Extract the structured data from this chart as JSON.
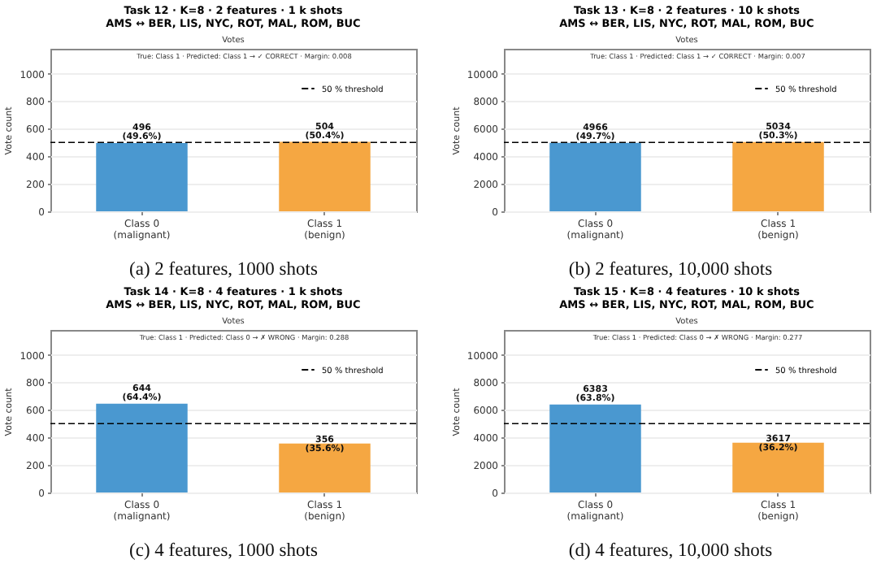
{
  "chart_data": [
    {
      "type": "bar",
      "title": "Task 12  ·  K=8  ·  2 features  ·  1 k shots\nAMS ↔ BER, LIS, NYC, ROT, MAL, ROM, BUC",
      "subtitle": "Votes",
      "ylabel": "Vote count",
      "categories": [
        "Class 0\n(malignant)",
        "Class 1\n(benign)"
      ],
      "values": [
        496,
        504
      ],
      "colors": [
        "#4a98d0",
        "#f5a742"
      ],
      "value_labels": [
        "496\n(49.6%)",
        "504\n(50.4%)"
      ],
      "ylim": [
        0,
        1180
      ],
      "yticks": [
        0,
        200,
        400,
        600,
        800,
        1000
      ],
      "grid": "y",
      "legend": "top right",
      "ref_lines": [
        {
          "axis": "y",
          "value": 500,
          "label": "50 % threshold",
          "color": "#000000",
          "line_style": "dashed"
        }
      ],
      "annotations": [
        "True: Class 1  ·  Predicted: Class 1  →  ✓ CORRECT  ·  Margin: 0.008",
        "(a) 2 features, 1000 shots"
      ]
    },
    {
      "type": "bar",
      "title": "Task 13  ·  K=8  ·  2 features  ·  10 k shots\nAMS ↔ BER, LIS, NYC, ROT, MAL, ROM, BUC",
      "subtitle": "Votes",
      "ylabel": "Vote count",
      "categories": [
        "Class 0\n(malignant)",
        "Class 1\n(benign)"
      ],
      "values": [
        4966,
        5034
      ],
      "colors": [
        "#4a98d0",
        "#f5a742"
      ],
      "value_labels": [
        "4966\n(49.7%)",
        "5034\n(50.3%)"
      ],
      "ylim": [
        0,
        11800
      ],
      "yticks": [
        0,
        2000,
        4000,
        6000,
        8000,
        10000
      ],
      "grid": "y",
      "legend": "top right",
      "ref_lines": [
        {
          "axis": "y",
          "value": 5000,
          "label": "50 % threshold",
          "color": "#000000",
          "line_style": "dashed"
        }
      ],
      "annotations": [
        "True: Class 1  ·  Predicted: Class 1  →  ✓ CORRECT  ·  Margin: 0.007",
        "(b) 2 features, 10,000 shots"
      ]
    },
    {
      "type": "bar",
      "title": "Task 14  ·  K=8  ·  4 features  ·  1 k shots\nAMS ↔ BER, LIS, NYC, ROT, MAL, ROM, BUC",
      "subtitle": "Votes",
      "ylabel": "Vote count",
      "categories": [
        "Class 0\n(malignant)",
        "Class 1\n(benign)"
      ],
      "values": [
        644,
        356
      ],
      "colors": [
        "#4a98d0",
        "#f5a742"
      ],
      "value_labels": [
        "644\n(64.4%)",
        "356\n(35.6%)"
      ],
      "ylim": [
        0,
        1180
      ],
      "yticks": [
        0,
        200,
        400,
        600,
        800,
        1000
      ],
      "grid": "y",
      "legend": "top right",
      "ref_lines": [
        {
          "axis": "y",
          "value": 500,
          "label": "50 % threshold",
          "color": "#000000",
          "line_style": "dashed"
        }
      ],
      "annotations": [
        "True: Class 1  ·  Predicted: Class 0  →  ✗ WRONG  ·  Margin: 0.288",
        "(c) 4 features, 1000 shots"
      ]
    },
    {
      "type": "bar",
      "title": "Task 15  ·  K=8  ·  4 features  ·  10 k shots\nAMS ↔ BER, LIS, NYC, ROT, MAL, ROM, BUC",
      "subtitle": "Votes",
      "ylabel": "Vote count",
      "categories": [
        "Class 0\n(malignant)",
        "Class 1\n(benign)"
      ],
      "values": [
        6383,
        3617
      ],
      "colors": [
        "#4a98d0",
        "#f5a742"
      ],
      "value_labels": [
        "6383\n(63.8%)",
        "3617\n(36.2%)"
      ],
      "ylim": [
        0,
        11800
      ],
      "yticks": [
        0,
        2000,
        4000,
        6000,
        8000,
        10000
      ],
      "grid": "y",
      "legend": "top right",
      "ref_lines": [
        {
          "axis": "y",
          "value": 5000,
          "label": "50 % threshold",
          "color": "#000000",
          "line_style": "dashed"
        }
      ],
      "annotations": [
        "True: Class 1  ·  Predicted: Class 0  →  ✗ WRONG  ·  Margin: 0.277",
        "(d) 4 features, 10,000 shots"
      ]
    }
  ]
}
